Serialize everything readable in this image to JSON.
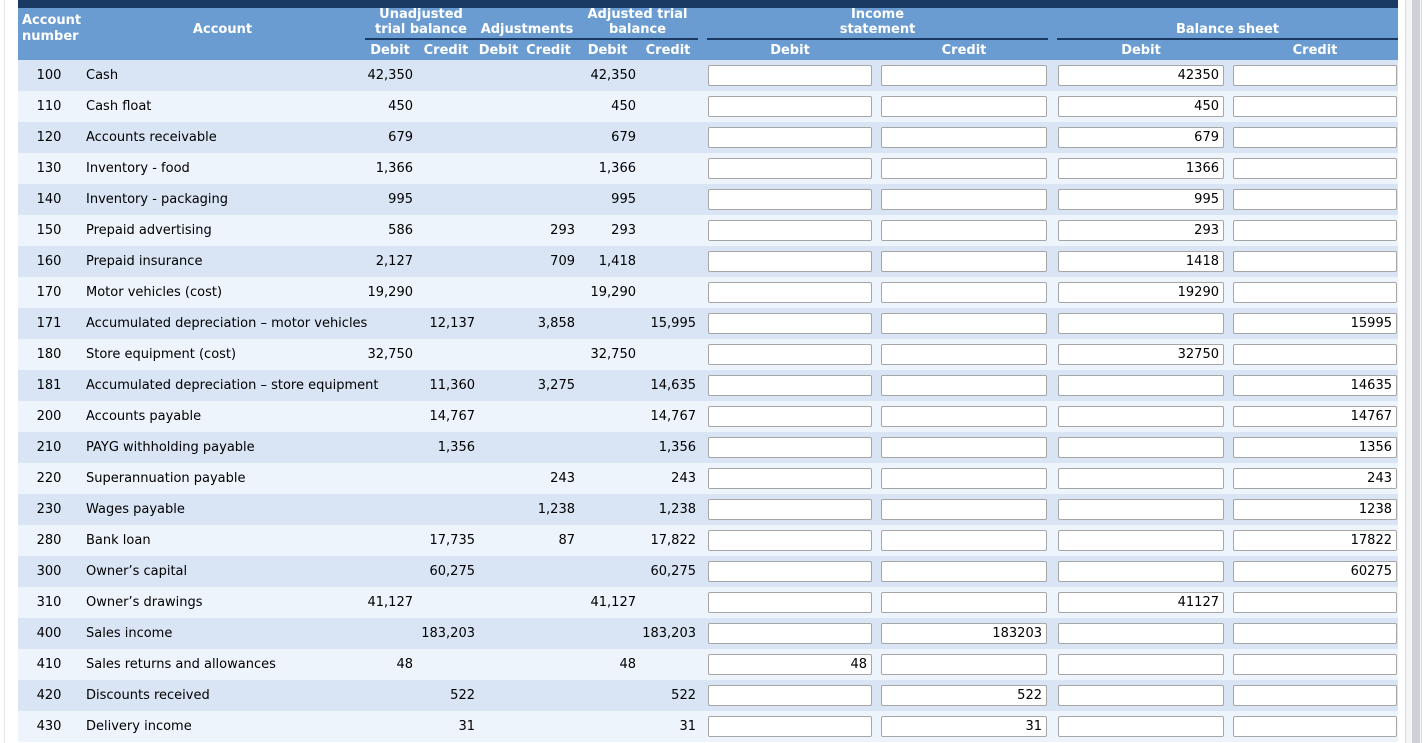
{
  "colors": {
    "accent_navy": "#1a3a64",
    "header_blue": "#6a9cd2",
    "row_stripe_dark": "#d9e5f5",
    "row_stripe_light": "#eef4fb",
    "input_border": "#a6a6a6"
  },
  "header": {
    "account_number": "Account number",
    "account": "Account",
    "debit": "Debit",
    "credit": "Credit",
    "groups": [
      "Unadjusted trial balance",
      "Adjustments",
      "Adjusted trial balance",
      "Income statement",
      "Balance sheet"
    ]
  },
  "table": {
    "rows": [
      {
        "number": "100",
        "account": "Cash",
        "utb_debit": "42,350",
        "utb_credit": "",
        "adj_debit": "",
        "adj_credit": "",
        "atb_debit": "42,350",
        "atb_credit": "",
        "is_debit": "",
        "is_credit": "",
        "bs_debit": "42350",
        "bs_credit": ""
      },
      {
        "number": "110",
        "account": "Cash float",
        "utb_debit": "450",
        "utb_credit": "",
        "adj_debit": "",
        "adj_credit": "",
        "atb_debit": "450",
        "atb_credit": "",
        "is_debit": "",
        "is_credit": "",
        "bs_debit": "450",
        "bs_credit": ""
      },
      {
        "number": "120",
        "account": "Accounts receivable",
        "utb_debit": "679",
        "utb_credit": "",
        "adj_debit": "",
        "adj_credit": "",
        "atb_debit": "679",
        "atb_credit": "",
        "is_debit": "",
        "is_credit": "",
        "bs_debit": "679",
        "bs_credit": ""
      },
      {
        "number": "130",
        "account": "Inventory - food",
        "utb_debit": "1,366",
        "utb_credit": "",
        "adj_debit": "",
        "adj_credit": "",
        "atb_debit": "1,366",
        "atb_credit": "",
        "is_debit": "",
        "is_credit": "",
        "bs_debit": "1366",
        "bs_credit": ""
      },
      {
        "number": "140",
        "account": "Inventory - packaging",
        "utb_debit": "995",
        "utb_credit": "",
        "adj_debit": "",
        "adj_credit": "",
        "atb_debit": "995",
        "atb_credit": "",
        "is_debit": "",
        "is_credit": "",
        "bs_debit": "995",
        "bs_credit": ""
      },
      {
        "number": "150",
        "account": "Prepaid advertising",
        "utb_debit": "586",
        "utb_credit": "",
        "adj_debit": "",
        "adj_credit": "293",
        "atb_debit": "293",
        "atb_credit": "",
        "is_debit": "",
        "is_credit": "",
        "bs_debit": "293",
        "bs_credit": ""
      },
      {
        "number": "160",
        "account": "Prepaid insurance",
        "utb_debit": "2,127",
        "utb_credit": "",
        "adj_debit": "",
        "adj_credit": "709",
        "atb_debit": "1,418",
        "atb_credit": "",
        "is_debit": "",
        "is_credit": "",
        "bs_debit": "1418",
        "bs_credit": ""
      },
      {
        "number": "170",
        "account": "Motor vehicles (cost)",
        "utb_debit": "19,290",
        "utb_credit": "",
        "adj_debit": "",
        "adj_credit": "",
        "atb_debit": "19,290",
        "atb_credit": "",
        "is_debit": "",
        "is_credit": "",
        "bs_debit": "19290",
        "bs_credit": ""
      },
      {
        "number": "171",
        "account": "Accumulated depreciation – motor vehicles",
        "utb_debit": "",
        "utb_credit": "12,137",
        "adj_debit": "",
        "adj_credit": "3,858",
        "atb_debit": "",
        "atb_credit": "15,995",
        "is_debit": "",
        "is_credit": "",
        "bs_debit": "",
        "bs_credit": "15995"
      },
      {
        "number": "180",
        "account": "Store equipment (cost)",
        "utb_debit": "32,750",
        "utb_credit": "",
        "adj_debit": "",
        "adj_credit": "",
        "atb_debit": "32,750",
        "atb_credit": "",
        "is_debit": "",
        "is_credit": "",
        "bs_debit": "32750",
        "bs_credit": ""
      },
      {
        "number": "181",
        "account": "Accumulated depreciation – store equipment",
        "utb_debit": "",
        "utb_credit": "11,360",
        "adj_debit": "",
        "adj_credit": "3,275",
        "atb_debit": "",
        "atb_credit": "14,635",
        "is_debit": "",
        "is_credit": "",
        "bs_debit": "",
        "bs_credit": "14635"
      },
      {
        "number": "200",
        "account": "Accounts payable",
        "utb_debit": "",
        "utb_credit": "14,767",
        "adj_debit": "",
        "adj_credit": "",
        "atb_debit": "",
        "atb_credit": "14,767",
        "is_debit": "",
        "is_credit": "",
        "bs_debit": "",
        "bs_credit": "14767"
      },
      {
        "number": "210",
        "account": "PAYG withholding payable",
        "utb_debit": "",
        "utb_credit": "1,356",
        "adj_debit": "",
        "adj_credit": "",
        "atb_debit": "",
        "atb_credit": "1,356",
        "is_debit": "",
        "is_credit": "",
        "bs_debit": "",
        "bs_credit": "1356"
      },
      {
        "number": "220",
        "account": "Superannuation payable",
        "utb_debit": "",
        "utb_credit": "",
        "adj_debit": "",
        "adj_credit": "243",
        "atb_debit": "",
        "atb_credit": "243",
        "is_debit": "",
        "is_credit": "",
        "bs_debit": "",
        "bs_credit": "243"
      },
      {
        "number": "230",
        "account": "Wages payable",
        "utb_debit": "",
        "utb_credit": "",
        "adj_debit": "",
        "adj_credit": "1,238",
        "atb_debit": "",
        "atb_credit": "1,238",
        "is_debit": "",
        "is_credit": "",
        "bs_debit": "",
        "bs_credit": "1238"
      },
      {
        "number": "280",
        "account": "Bank loan",
        "utb_debit": "",
        "utb_credit": "17,735",
        "adj_debit": "",
        "adj_credit": "87",
        "atb_debit": "",
        "atb_credit": "17,822",
        "is_debit": "",
        "is_credit": "",
        "bs_debit": "",
        "bs_credit": "17822"
      },
      {
        "number": "300",
        "account": "Owner’s capital",
        "utb_debit": "",
        "utb_credit": "60,275",
        "adj_debit": "",
        "adj_credit": "",
        "atb_debit": "",
        "atb_credit": "60,275",
        "is_debit": "",
        "is_credit": "",
        "bs_debit": "",
        "bs_credit": "60275"
      },
      {
        "number": "310",
        "account": "Owner’s drawings",
        "utb_debit": "41,127",
        "utb_credit": "",
        "adj_debit": "",
        "adj_credit": "",
        "atb_debit": "41,127",
        "atb_credit": "",
        "is_debit": "",
        "is_credit": "",
        "bs_debit": "41127",
        "bs_credit": ""
      },
      {
        "number": "400",
        "account": "Sales income",
        "utb_debit": "",
        "utb_credit": "183,203",
        "adj_debit": "",
        "adj_credit": "",
        "atb_debit": "",
        "atb_credit": "183,203",
        "is_debit": "",
        "is_credit": "183203",
        "bs_debit": "",
        "bs_credit": ""
      },
      {
        "number": "410",
        "account": "Sales returns and allowances",
        "utb_debit": "48",
        "utb_credit": "",
        "adj_debit": "",
        "adj_credit": "",
        "atb_debit": "48",
        "atb_credit": "",
        "is_debit": "48",
        "is_credit": "",
        "bs_debit": "",
        "bs_credit": ""
      },
      {
        "number": "420",
        "account": "Discounts received",
        "utb_debit": "",
        "utb_credit": "522",
        "adj_debit": "",
        "adj_credit": "",
        "atb_debit": "",
        "atb_credit": "522",
        "is_debit": "",
        "is_credit": "522",
        "bs_debit": "",
        "bs_credit": ""
      },
      {
        "number": "430",
        "account": "Delivery income",
        "utb_debit": "",
        "utb_credit": "31",
        "adj_debit": "",
        "adj_credit": "",
        "atb_debit": "",
        "atb_credit": "31",
        "is_debit": "",
        "is_credit": "31",
        "bs_debit": "",
        "bs_credit": ""
      }
    ]
  }
}
